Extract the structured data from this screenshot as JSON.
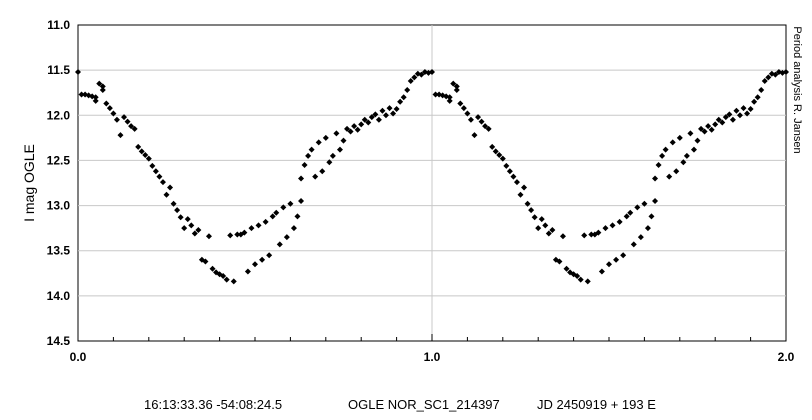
{
  "chart_data": {
    "type": "scatter",
    "title": "",
    "xlabel": "",
    "ylabel": "I mag OGLE",
    "xlim": [
      0.0,
      2.0
    ],
    "ylim": [
      11.0,
      14.5
    ],
    "y_inverted": true,
    "x_ticks": [
      "0.0",
      "1.0",
      "2.0"
    ],
    "y_ticks": [
      "11.0",
      "11.5",
      "12.0",
      "12.5",
      "13.0",
      "13.5",
      "14.0",
      "14.5"
    ],
    "grid": "vertical line at 1.0 only",
    "marker_color": "#000000",
    "marker_shape": "diamond",
    "credit": "Period analysis R. Jansen",
    "series": [
      {
        "name": "",
        "phase_folded": true,
        "points": [
          [
            0.0,
            11.52
          ],
          [
            0.01,
            11.77
          ],
          [
            0.02,
            11.77
          ],
          [
            0.03,
            11.78
          ],
          [
            0.04,
            11.79
          ],
          [
            0.05,
            11.8
          ],
          [
            0.05,
            11.84
          ],
          [
            0.06,
            11.65
          ],
          [
            0.07,
            11.68
          ],
          [
            0.07,
            11.72
          ],
          [
            0.08,
            11.87
          ],
          [
            0.09,
            11.92
          ],
          [
            0.1,
            11.98
          ],
          [
            0.11,
            12.05
          ],
          [
            0.12,
            12.22
          ],
          [
            0.13,
            12.02
          ],
          [
            0.14,
            12.07
          ],
          [
            0.15,
            12.12
          ],
          [
            0.16,
            12.15
          ],
          [
            0.17,
            12.35
          ],
          [
            0.18,
            12.4
          ],
          [
            0.19,
            12.44
          ],
          [
            0.2,
            12.48
          ],
          [
            0.21,
            12.56
          ],
          [
            0.22,
            12.62
          ],
          [
            0.23,
            12.68
          ],
          [
            0.24,
            12.74
          ],
          [
            0.25,
            12.88
          ],
          [
            0.26,
            12.8
          ],
          [
            0.27,
            12.98
          ],
          [
            0.28,
            13.05
          ],
          [
            0.29,
            13.13
          ],
          [
            0.3,
            13.25
          ],
          [
            0.31,
            13.15
          ],
          [
            0.32,
            13.22
          ],
          [
            0.33,
            13.31
          ],
          [
            0.34,
            13.27
          ],
          [
            0.35,
            13.6
          ],
          [
            0.36,
            13.62
          ],
          [
            0.37,
            13.34
          ],
          [
            0.38,
            13.7
          ],
          [
            0.39,
            13.74
          ],
          [
            0.4,
            13.76
          ],
          [
            0.41,
            13.78
          ],
          [
            0.42,
            13.82
          ],
          [
            0.43,
            13.33
          ],
          [
            0.44,
            13.84
          ],
          [
            0.45,
            13.32
          ],
          [
            0.46,
            13.32
          ],
          [
            0.47,
            13.3
          ],
          [
            0.48,
            13.73
          ],
          [
            0.49,
            13.25
          ],
          [
            0.5,
            13.65
          ],
          [
            0.51,
            13.22
          ],
          [
            0.52,
            13.6
          ],
          [
            0.53,
            13.18
          ],
          [
            0.54,
            13.55
          ],
          [
            0.55,
            13.12
          ],
          [
            0.56,
            13.08
          ],
          [
            0.57,
            13.43
          ],
          [
            0.58,
            13.02
          ],
          [
            0.59,
            13.35
          ],
          [
            0.6,
            12.98
          ],
          [
            0.61,
            13.25
          ],
          [
            0.62,
            13.12
          ],
          [
            0.63,
            12.95
          ],
          [
            0.63,
            12.7
          ],
          [
            0.64,
            12.55
          ],
          [
            0.65,
            12.45
          ],
          [
            0.66,
            12.38
          ],
          [
            0.67,
            12.68
          ],
          [
            0.68,
            12.3
          ],
          [
            0.69,
            12.62
          ],
          [
            0.7,
            12.25
          ],
          [
            0.71,
            12.52
          ],
          [
            0.72,
            12.45
          ],
          [
            0.73,
            12.2
          ],
          [
            0.74,
            12.38
          ],
          [
            0.75,
            12.28
          ],
          [
            0.76,
            12.15
          ],
          [
            0.77,
            12.18
          ],
          [
            0.78,
            12.12
          ],
          [
            0.79,
            12.16
          ],
          [
            0.8,
            12.1
          ],
          [
            0.81,
            12.05
          ],
          [
            0.82,
            12.08
          ],
          [
            0.83,
            12.02
          ],
          [
            0.84,
            11.99
          ],
          [
            0.85,
            12.05
          ],
          [
            0.86,
            11.95
          ],
          [
            0.87,
            12.0
          ],
          [
            0.88,
            11.92
          ],
          [
            0.89,
            11.98
          ],
          [
            0.9,
            11.93
          ],
          [
            0.91,
            11.85
          ],
          [
            0.92,
            11.8
          ],
          [
            0.93,
            11.72
          ],
          [
            0.94,
            11.62
          ],
          [
            0.95,
            11.58
          ],
          [
            0.96,
            11.54
          ],
          [
            0.97,
            11.55
          ],
          [
            0.98,
            11.52
          ],
          [
            0.99,
            11.53
          ]
        ]
      }
    ]
  },
  "footer": {
    "coordinates": "16:13:33.36 -54:08:24.5",
    "object_id": "OGLE NOR_SC1_214397",
    "ephemeris": "JD 2450919 + 193 E"
  }
}
